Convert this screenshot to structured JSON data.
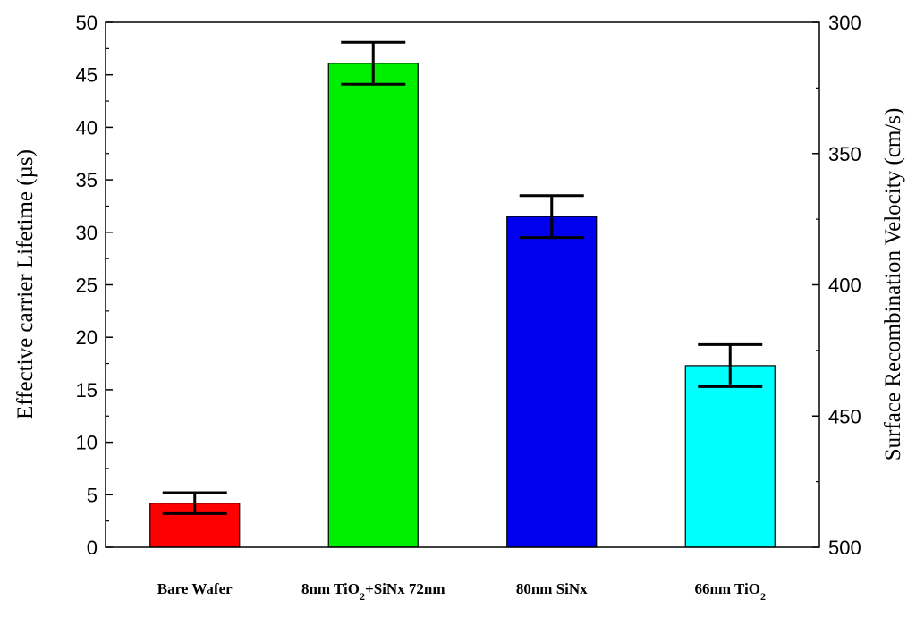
{
  "chart_data": {
    "type": "bar",
    "categories": [
      {
        "label": "Bare Wafer",
        "parts": [
          {
            "text": "Bare Wafer",
            "sub": false
          }
        ]
      },
      {
        "label": "8nm TiO2+SiNx 72nm",
        "parts": [
          {
            "text": "8nm TiO",
            "sub": false
          },
          {
            "text": "2",
            "sub": true
          },
          {
            "text": "+SiNx 72nm",
            "sub": false
          }
        ]
      },
      {
        "label": "80nm SiNx",
        "parts": [
          {
            "text": "80nm SiNx",
            "sub": false
          }
        ]
      },
      {
        "label": "66nm TiO2",
        "parts": [
          {
            "text": "66nm TiO",
            "sub": false
          },
          {
            "text": "2",
            "sub": true
          }
        ]
      }
    ],
    "values": [
      4.2,
      46.1,
      31.5,
      17.3
    ],
    "errors": [
      1.0,
      2.0,
      2.0,
      2.0
    ],
    "colors": [
      "#ff0000",
      "#00ee00",
      "#0000ee",
      "#00ffff"
    ],
    "ylabel": "Effective carrier Lifetime (µs)",
    "ylabel_right": "Surface Recombination Velocity (cm/s)",
    "ylim": [
      0,
      50
    ],
    "yticks": [
      0,
      5,
      10,
      15,
      20,
      25,
      30,
      35,
      40,
      45,
      50
    ],
    "y2lim": [
      500,
      300
    ],
    "y2ticks": [
      300,
      350,
      400,
      450,
      500
    ],
    "grid": false
  }
}
